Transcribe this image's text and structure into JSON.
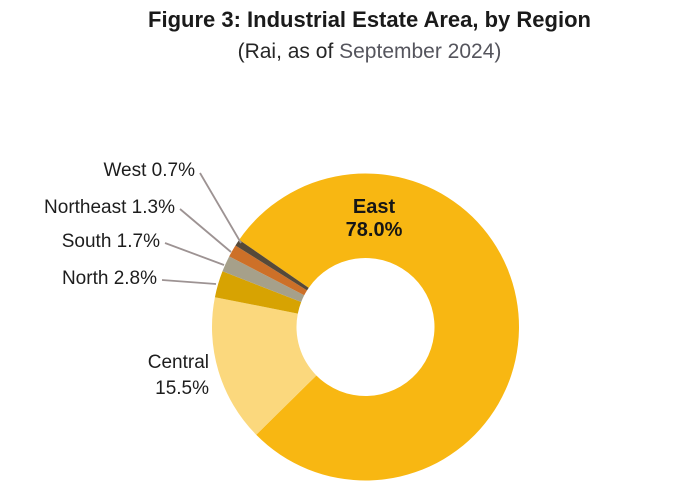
{
  "figure": {
    "title": "Figure 3: Industrial Estate Area, by Region",
    "subtitle_prefix": "(Rai, as of ",
    "subtitle_date": "September 2024)"
  },
  "chart_data": {
    "type": "pie",
    "subtype": "donut",
    "title": "Figure 3: Industrial Estate Area, by Region",
    "subtitle": "(Rai, as of September 2024)",
    "unit": "percent share of industrial estate area (Rai)",
    "direction": "clockwise",
    "start_angle_deg": 304.6,
    "legend_position": "none (direct slice labels with leader lines)",
    "slices": [
      {
        "label": "East",
        "value": 78.0,
        "color": "#F8B712"
      },
      {
        "label": "Central",
        "value": 15.5,
        "color": "#FBD87D"
      },
      {
        "label": "North",
        "value": 2.8,
        "color": "#D7A302"
      },
      {
        "label": "South",
        "value": 1.7,
        "color": "#A6A08A"
      },
      {
        "label": "Northeast",
        "value": 1.3,
        "color": "#CD7028"
      },
      {
        "label": "West",
        "value": 0.7,
        "color": "#564939"
      }
    ],
    "leader_line_color": "#9D9393"
  },
  "callouts": {
    "east_line1": "East",
    "east_line2": "78.0%",
    "west": "West 0.7%",
    "northeast": "Northeast 1.3%",
    "south": "South 1.7%",
    "north": "North 2.8%",
    "central_line1": "Central",
    "central_line2": "15.5%"
  }
}
